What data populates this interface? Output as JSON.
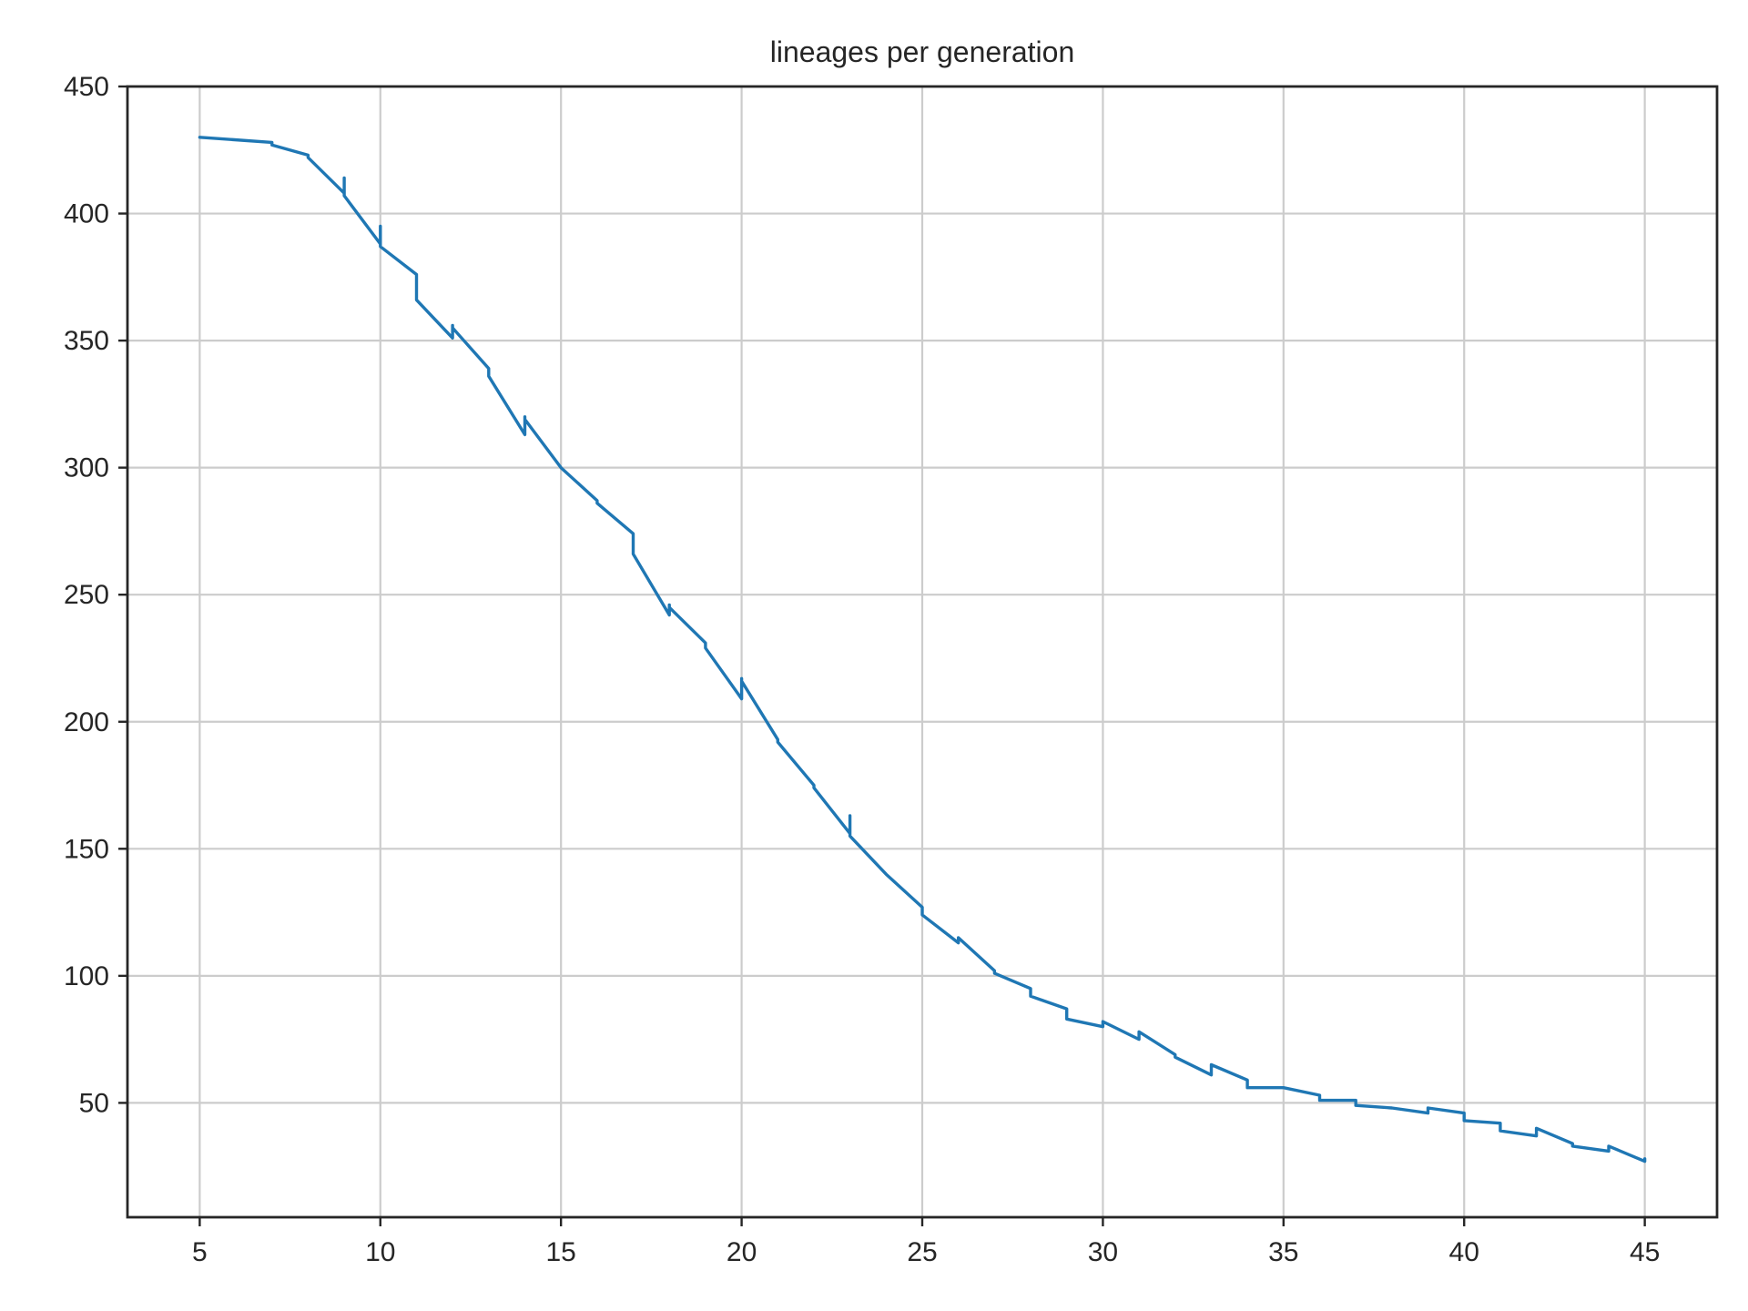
{
  "chart_data": {
    "type": "line",
    "title": "lineages per generation",
    "xlabel": "",
    "ylabel": "",
    "xlim": [
      3,
      47
    ],
    "ylim": [
      5,
      450
    ],
    "xticks": [
      5,
      10,
      15,
      20,
      25,
      30,
      35,
      40,
      45
    ],
    "yticks": [
      50,
      100,
      150,
      200,
      250,
      300,
      350,
      400,
      450
    ],
    "grid": true,
    "legend": "none",
    "series": [
      {
        "color": "#1f77b4",
        "x": [
          5,
          7,
          7,
          8,
          8,
          9,
          9,
          9,
          10,
          10,
          10,
          11,
          11,
          12,
          12,
          12,
          13,
          13,
          14,
          14,
          14,
          15,
          16,
          16,
          17,
          17,
          18,
          18,
          18,
          19,
          19,
          20,
          20,
          20,
          21,
          21,
          22,
          22,
          23,
          23,
          23,
          24,
          25,
          25,
          26,
          26,
          27,
          27,
          28,
          28,
          29,
          29,
          30,
          30,
          31,
          31,
          32,
          32,
          33,
          33,
          34,
          34,
          35,
          36,
          36,
          37,
          37,
          38,
          39,
          39,
          40,
          40,
          41,
          41,
          42,
          42,
          43,
          43,
          44,
          44,
          45,
          45
        ],
        "y": [
          430,
          428,
          427,
          423,
          422,
          408,
          414,
          407,
          388,
          395,
          387,
          376,
          366,
          351,
          356,
          355,
          339,
          336,
          313,
          320,
          319,
          300,
          287,
          286,
          274,
          266,
          242,
          246,
          245,
          231,
          229,
          209,
          217,
          216,
          193,
          192,
          175,
          174,
          156,
          163,
          155,
          140,
          127,
          124,
          113,
          115,
          102,
          101,
          95,
          92,
          87,
          83,
          80,
          82,
          75,
          78,
          69,
          68,
          61,
          65,
          59,
          56,
          56,
          53,
          51,
          51,
          49,
          48,
          46,
          48,
          46,
          43,
          42,
          39,
          37,
          40,
          34,
          33,
          31,
          33,
          27,
          28
        ]
      }
    ]
  }
}
